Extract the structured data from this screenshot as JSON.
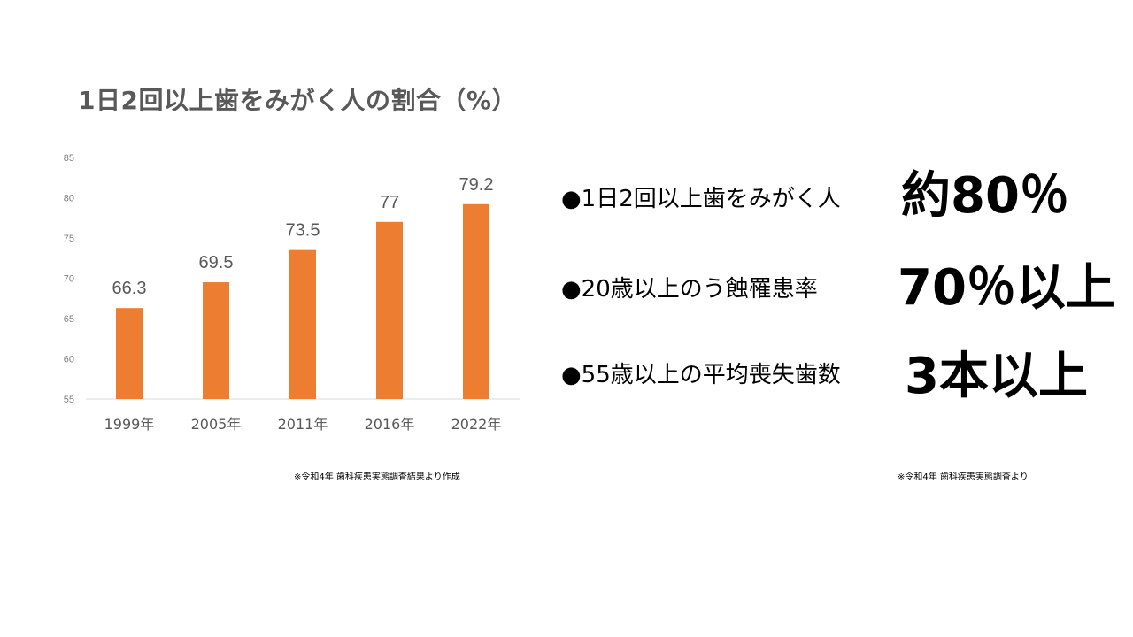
{
  "chart_data": {
    "type": "bar",
    "title": "1日2回以上歯をみがく人の割合（%）",
    "categories": [
      "1999年",
      "2005年",
      "2011年",
      "2016年",
      "2022年"
    ],
    "values": [
      66.3,
      69.5,
      73.5,
      77,
      79.2
    ],
    "value_labels": [
      "66.3",
      "69.5",
      "73.5",
      "77",
      "79.2"
    ],
    "ylim": [
      55,
      85
    ],
    "yticks": [
      55,
      60,
      65,
      70,
      75,
      80,
      85
    ],
    "grid": false,
    "bar_color": "#ED7D31"
  },
  "chart_source_note": "※令和4年 歯科疾患実態調査結果より作成",
  "stats": [
    {
      "label": "●1日2回以上歯をみがく人",
      "value": "約80％"
    },
    {
      "label": "●20歳以上のう蝕罹患率",
      "value": "70％以上"
    },
    {
      "label": "●55歳以上の平均喪失歯数",
      "value": "3本以上"
    }
  ],
  "stats_source_note": "※令和4年 歯科疾患実態調査より"
}
